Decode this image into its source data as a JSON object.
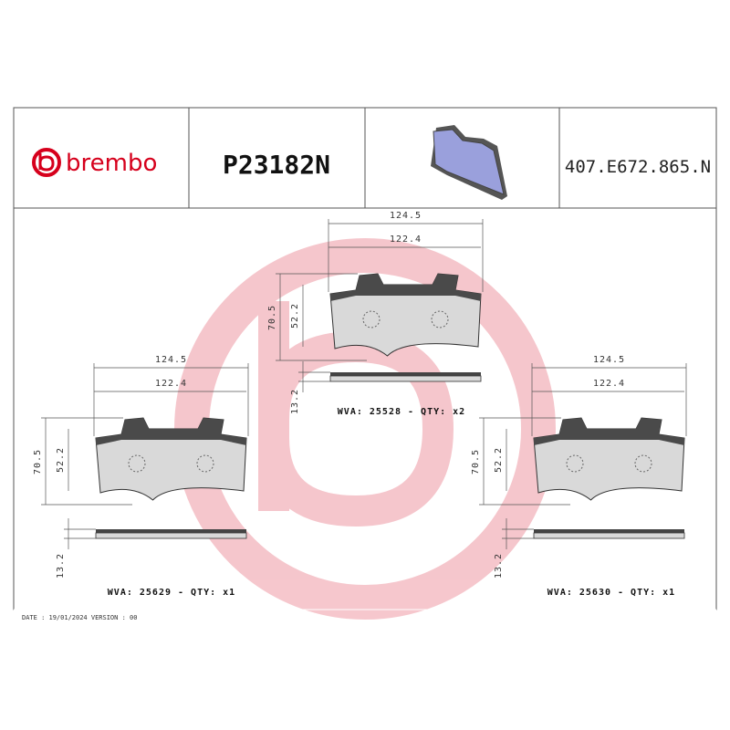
{
  "header": {
    "brand": "brembo",
    "part_number": "P23182N",
    "reference": "407.E672.865.N"
  },
  "pads": [
    {
      "width_outer": "124.5",
      "width_inner": "122.4",
      "height": "70.5",
      "height_inner": "52.2",
      "thickness": "13.2",
      "label": "WVA: 25528 - QTY: x2"
    },
    {
      "width_outer": "124.5",
      "width_inner": "122.4",
      "height": "70.5",
      "height_inner": "52.2",
      "thickness": "13.2",
      "label": "WVA: 25629 - QTY: x1"
    },
    {
      "width_outer": "124.5",
      "width_inner": "122.4",
      "height": "70.5",
      "height_inner": "52.2",
      "thickness": "13.2",
      "label": "WVA: 25630 - QTY: x1"
    }
  ],
  "footer": "DATE : 19/01/2024 VERSION : 00"
}
